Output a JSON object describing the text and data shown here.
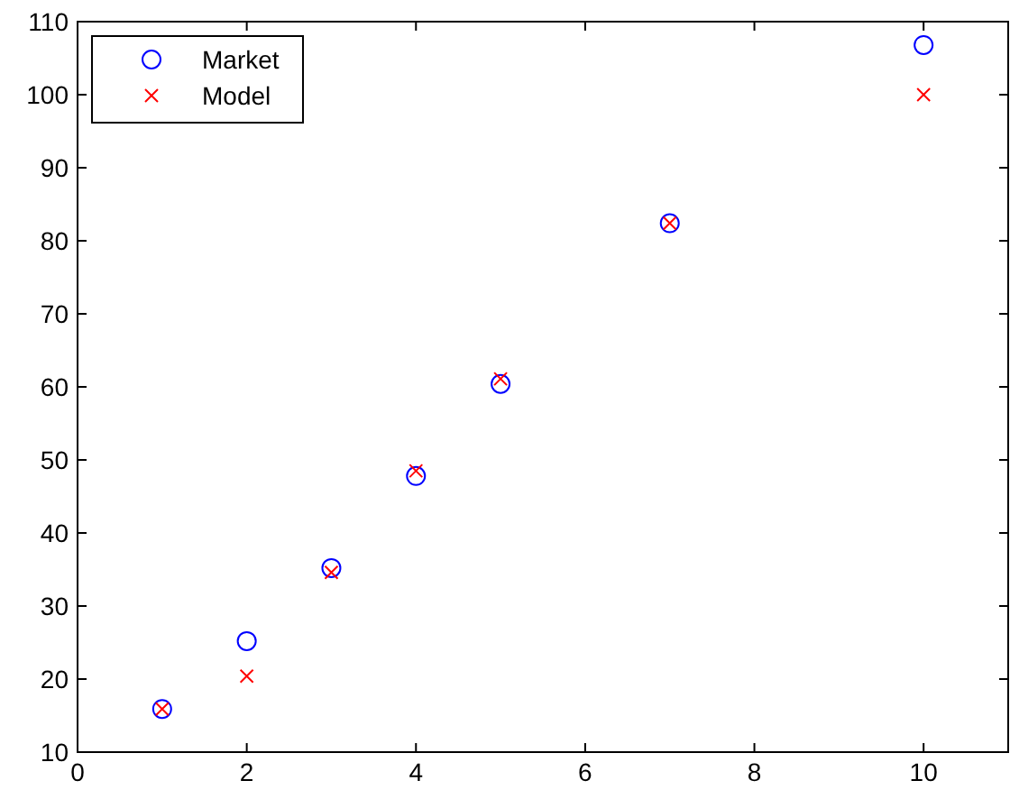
{
  "chart_data": {
    "type": "scatter",
    "xlim": [
      0,
      11
    ],
    "xticks": [
      0,
      2,
      4,
      6,
      8,
      10
    ],
    "ylim": [
      10,
      110
    ],
    "yticks": [
      10,
      20,
      30,
      40,
      50,
      60,
      70,
      80,
      90,
      100,
      110
    ],
    "grid": false,
    "legend": "top left",
    "series": [
      {
        "name": "Market",
        "color": "#0000ff",
        "marker": "circle",
        "x": [
          1,
          2,
          3,
          4,
          5,
          7,
          10
        ],
        "values": [
          15.9,
          25.2,
          35.2,
          47.8,
          60.4,
          82.4,
          106.8
        ]
      },
      {
        "name": "Model",
        "color": "#ff0000",
        "marker": "cross",
        "x": [
          1,
          2,
          3,
          4,
          5,
          7,
          10
        ],
        "values": [
          15.9,
          20.4,
          34.6,
          48.5,
          61.1,
          82.4,
          100
        ]
      }
    ]
  }
}
